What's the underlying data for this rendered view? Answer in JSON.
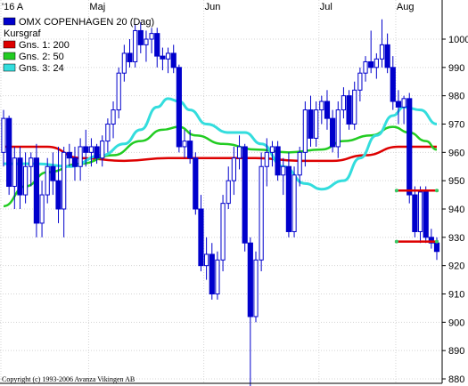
{
  "chart_data": {
    "type": "candlestick",
    "title": "OMX COPENHAGEN 20 (Dag)",
    "x_labels": [
      {
        "label": "'16 A",
        "index": 0
      },
      {
        "label": "Maj",
        "index": 16
      },
      {
        "label": "Jun",
        "index": 37
      },
      {
        "label": "Jul",
        "index": 58
      },
      {
        "label": "Aug",
        "index": 72
      }
    ],
    "y_ticks": [
      880,
      890,
      900,
      910,
      920,
      930,
      940,
      950,
      960,
      970,
      980,
      990,
      1000
    ],
    "ylim": [
      875,
      1005
    ],
    "n_days": 80,
    "legend": [
      {
        "name": "OMX COPENHAGEN 20 (Dag)",
        "color": "#0000cc"
      },
      {
        "name": "Kursgraf",
        "color": null
      },
      {
        "name": "Gns. 1: 200",
        "color": "#dd0000"
      },
      {
        "name": "Gns. 2: 50",
        "color": "#22cc22"
      },
      {
        "name": "Gns. 3: 24",
        "color": "#33dddd"
      }
    ],
    "candles": [
      {
        "o": 960,
        "h": 975,
        "l": 955,
        "c": 972
      },
      {
        "o": 972,
        "h": 973,
        "l": 945,
        "c": 948
      },
      {
        "o": 948,
        "h": 962,
        "l": 940,
        "c": 958
      },
      {
        "o": 958,
        "h": 962,
        "l": 940,
        "c": 945
      },
      {
        "o": 945,
        "h": 960,
        "l": 942,
        "c": 955
      },
      {
        "o": 955,
        "h": 960,
        "l": 948,
        "c": 958
      },
      {
        "o": 958,
        "h": 963,
        "l": 930,
        "c": 935
      },
      {
        "o": 935,
        "h": 950,
        "l": 930,
        "c": 945
      },
      {
        "o": 945,
        "h": 958,
        "l": 942,
        "c": 955
      },
      {
        "o": 955,
        "h": 960,
        "l": 945,
        "c": 950
      },
      {
        "o": 950,
        "h": 962,
        "l": 935,
        "c": 940
      },
      {
        "o": 940,
        "h": 962,
        "l": 930,
        "c": 960
      },
      {
        "o": 960,
        "h": 963,
        "l": 955,
        "c": 958
      },
      {
        "o": 958,
        "h": 962,
        "l": 950,
        "c": 955
      },
      {
        "o": 955,
        "h": 965,
        "l": 950,
        "c": 962
      },
      {
        "o": 962,
        "h": 968,
        "l": 955,
        "c": 960
      },
      {
        "o": 960,
        "h": 965,
        "l": 955,
        "c": 962
      },
      {
        "o": 962,
        "h": 963,
        "l": 956,
        "c": 958
      },
      {
        "o": 958,
        "h": 966,
        "l": 955,
        "c": 964
      },
      {
        "o": 964,
        "h": 972,
        "l": 960,
        "c": 970
      },
      {
        "o": 970,
        "h": 978,
        "l": 965,
        "c": 975
      },
      {
        "o": 975,
        "h": 990,
        "l": 972,
        "c": 988
      },
      {
        "o": 988,
        "h": 998,
        "l": 985,
        "c": 995
      },
      {
        "o": 995,
        "h": 1000,
        "l": 990,
        "c": 992
      },
      {
        "o": 992,
        "h": 1005,
        "l": 990,
        "c": 1003
      },
      {
        "o": 1003,
        "h": 1006,
        "l": 995,
        "c": 998
      },
      {
        "o": 998,
        "h": 1003,
        "l": 992,
        "c": 1000
      },
      {
        "o": 1000,
        "h": 1004,
        "l": 995,
        "c": 1002
      },
      {
        "o": 1002,
        "h": 1004,
        "l": 990,
        "c": 994
      },
      {
        "o": 994,
        "h": 997,
        "l": 989,
        "c": 993
      },
      {
        "o": 993,
        "h": 997,
        "l": 988,
        "c": 995
      },
      {
        "o": 995,
        "h": 998,
        "l": 988,
        "c": 990
      },
      {
        "o": 990,
        "h": 991,
        "l": 960,
        "c": 962
      },
      {
        "o": 962,
        "h": 968,
        "l": 958,
        "c": 964
      },
      {
        "o": 964,
        "h": 968,
        "l": 956,
        "c": 958
      },
      {
        "o": 958,
        "h": 960,
        "l": 938,
        "c": 940
      },
      {
        "o": 940,
        "h": 945,
        "l": 918,
        "c": 920
      },
      {
        "o": 920,
        "h": 930,
        "l": 915,
        "c": 924
      },
      {
        "o": 924,
        "h": 928,
        "l": 908,
        "c": 910
      },
      {
        "o": 910,
        "h": 925,
        "l": 908,
        "c": 922
      },
      {
        "o": 922,
        "h": 945,
        "l": 918,
        "c": 942
      },
      {
        "o": 942,
        "h": 955,
        "l": 940,
        "c": 950
      },
      {
        "o": 950,
        "h": 962,
        "l": 945,
        "c": 958
      },
      {
        "o": 958,
        "h": 966,
        "l": 954,
        "c": 962
      },
      {
        "o": 962,
        "h": 963,
        "l": 925,
        "c": 928
      },
      {
        "o": 928,
        "h": 930,
        "l": 877,
        "c": 902
      },
      {
        "o": 902,
        "h": 925,
        "l": 900,
        "c": 922
      },
      {
        "o": 922,
        "h": 960,
        "l": 918,
        "c": 955
      },
      {
        "o": 955,
        "h": 965,
        "l": 948,
        "c": 960
      },
      {
        "o": 960,
        "h": 964,
        "l": 955,
        "c": 962
      },
      {
        "o": 962,
        "h": 964,
        "l": 950,
        "c": 952
      },
      {
        "o": 952,
        "h": 958,
        "l": 945,
        "c": 955
      },
      {
        "o": 955,
        "h": 960,
        "l": 930,
        "c": 932
      },
      {
        "o": 932,
        "h": 955,
        "l": 930,
        "c": 952
      },
      {
        "o": 952,
        "h": 962,
        "l": 948,
        "c": 960
      },
      {
        "o": 960,
        "h": 978,
        "l": 955,
        "c": 975
      },
      {
        "o": 975,
        "h": 980,
        "l": 962,
        "c": 965
      },
      {
        "o": 965,
        "h": 978,
        "l": 962,
        "c": 975
      },
      {
        "o": 975,
        "h": 980,
        "l": 970,
        "c": 978
      },
      {
        "o": 978,
        "h": 982,
        "l": 968,
        "c": 972
      },
      {
        "o": 972,
        "h": 975,
        "l": 960,
        "c": 962
      },
      {
        "o": 962,
        "h": 978,
        "l": 958,
        "c": 975
      },
      {
        "o": 975,
        "h": 983,
        "l": 972,
        "c": 980
      },
      {
        "o": 980,
        "h": 982,
        "l": 968,
        "c": 970
      },
      {
        "o": 970,
        "h": 985,
        "l": 968,
        "c": 982
      },
      {
        "o": 982,
        "h": 990,
        "l": 978,
        "c": 988
      },
      {
        "o": 988,
        "h": 994,
        "l": 985,
        "c": 992
      },
      {
        "o": 992,
        "h": 1003,
        "l": 988,
        "c": 990
      },
      {
        "o": 990,
        "h": 995,
        "l": 986,
        "c": 993
      },
      {
        "o": 993,
        "h": 1007,
        "l": 990,
        "c": 998
      },
      {
        "o": 998,
        "h": 1002,
        "l": 988,
        "c": 990
      },
      {
        "o": 990,
        "h": 994,
        "l": 975,
        "c": 978
      },
      {
        "o": 978,
        "h": 982,
        "l": 970,
        "c": 976
      },
      {
        "o": 976,
        "h": 980,
        "l": 970,
        "c": 979
      },
      {
        "o": 979,
        "h": 981,
        "l": 942,
        "c": 945
      },
      {
        "o": 945,
        "h": 948,
        "l": 930,
        "c": 932
      },
      {
        "o": 932,
        "h": 948,
        "l": 928,
        "c": 946
      },
      {
        "o": 946,
        "h": 948,
        "l": 928,
        "c": 930
      },
      {
        "o": 930,
        "h": 933,
        "l": 926,
        "c": 928
      },
      {
        "o": 928,
        "h": 930,
        "l": 922,
        "c": 925
      }
    ],
    "moving_averages": [
      {
        "name": "Gns. 1: 200",
        "color": "#dd0000",
        "points": [
          [
            0,
            962
          ],
          [
            8,
            962
          ],
          [
            14,
            958
          ],
          [
            22,
            957
          ],
          [
            30,
            958
          ],
          [
            38,
            958
          ],
          [
            46,
            958
          ],
          [
            54,
            957
          ],
          [
            60,
            957
          ],
          [
            66,
            959
          ],
          [
            72,
            962
          ],
          [
            79,
            962
          ]
        ]
      },
      {
        "name": "Gns. 2: 50",
        "color": "#22cc22",
        "points": [
          [
            0,
            941
          ],
          [
            4,
            948
          ],
          [
            8,
            953
          ],
          [
            14,
            956
          ],
          [
            20,
            959
          ],
          [
            25,
            964
          ],
          [
            29,
            968
          ],
          [
            32,
            969
          ],
          [
            35,
            966
          ],
          [
            40,
            963
          ],
          [
            46,
            961
          ],
          [
            52,
            960
          ],
          [
            58,
            961
          ],
          [
            62,
            964
          ],
          [
            67,
            966
          ],
          [
            71,
            969
          ],
          [
            74,
            967
          ],
          [
            77,
            964
          ],
          [
            79,
            961
          ]
        ]
      },
      {
        "name": "Gns. 3: 24",
        "color": "#33dddd",
        "points": [
          [
            0,
            956
          ],
          [
            6,
            956
          ],
          [
            12,
            955
          ],
          [
            18,
            959
          ],
          [
            22,
            963
          ],
          [
            25,
            968
          ],
          [
            28,
            976
          ],
          [
            30,
            979
          ],
          [
            32,
            978
          ],
          [
            34,
            975
          ],
          [
            37,
            970
          ],
          [
            41,
            967
          ],
          [
            44,
            967
          ],
          [
            47,
            963
          ],
          [
            51,
            955
          ],
          [
            55,
            949
          ],
          [
            58,
            947
          ],
          [
            62,
            950
          ],
          [
            65,
            958
          ],
          [
            68,
            966
          ],
          [
            71,
            973
          ],
          [
            73,
            976
          ],
          [
            76,
            975
          ],
          [
            79,
            970
          ]
        ]
      }
    ],
    "support_lines": [
      {
        "y": 946.5,
        "x_from": 72,
        "x_to": 79,
        "color": "#dd0000"
      },
      {
        "y": 928.5,
        "x_from": 72,
        "x_to": 79,
        "color": "#dd0000"
      }
    ]
  },
  "copyright": "Copyright (c) 1993-2006 Avanza Vikingen AB"
}
